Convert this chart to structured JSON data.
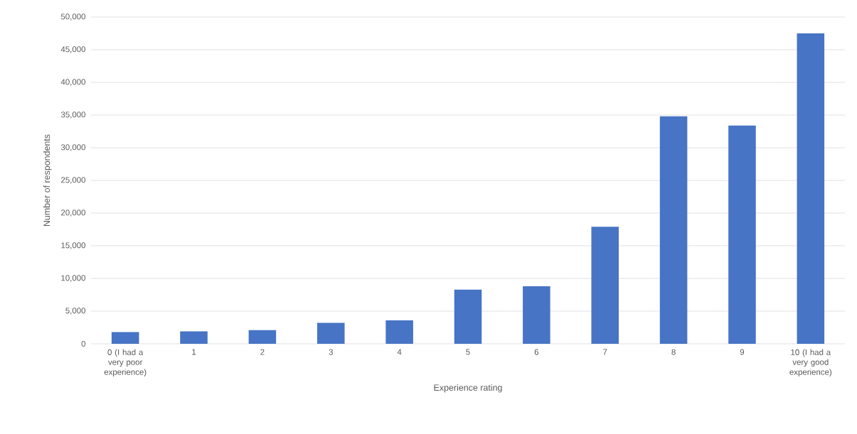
{
  "chart_data": {
    "type": "bar",
    "xlabel": "Experience rating",
    "ylabel": "Number of respondents",
    "categories": [
      "0 (I had a very poor experience)",
      "1",
      "2",
      "3",
      "4",
      "5",
      "6",
      "7",
      "8",
      "9",
      "10 (I had a very good experience)"
    ],
    "values": [
      1800,
      1900,
      2100,
      3200,
      3600,
      8300,
      8800,
      17900,
      34800,
      33400,
      47500
    ],
    "color": "#4774c4",
    "ylim": [
      0,
      50000
    ],
    "yticks": [
      {
        "value": 0,
        "label": "0"
      },
      {
        "value": 5000,
        "label": "5,000"
      },
      {
        "value": 10000,
        "label": "10,000"
      },
      {
        "value": 15000,
        "label": "15,000"
      },
      {
        "value": 20000,
        "label": "20,000"
      },
      {
        "value": 25000,
        "label": "25,000"
      },
      {
        "value": 30000,
        "label": "30,000"
      },
      {
        "value": 35000,
        "label": "35,000"
      },
      {
        "value": 40000,
        "label": "40,000"
      },
      {
        "value": 45000,
        "label": "45,000"
      },
      {
        "value": 50000,
        "label": "50,000"
      }
    ],
    "grid": "y"
  }
}
